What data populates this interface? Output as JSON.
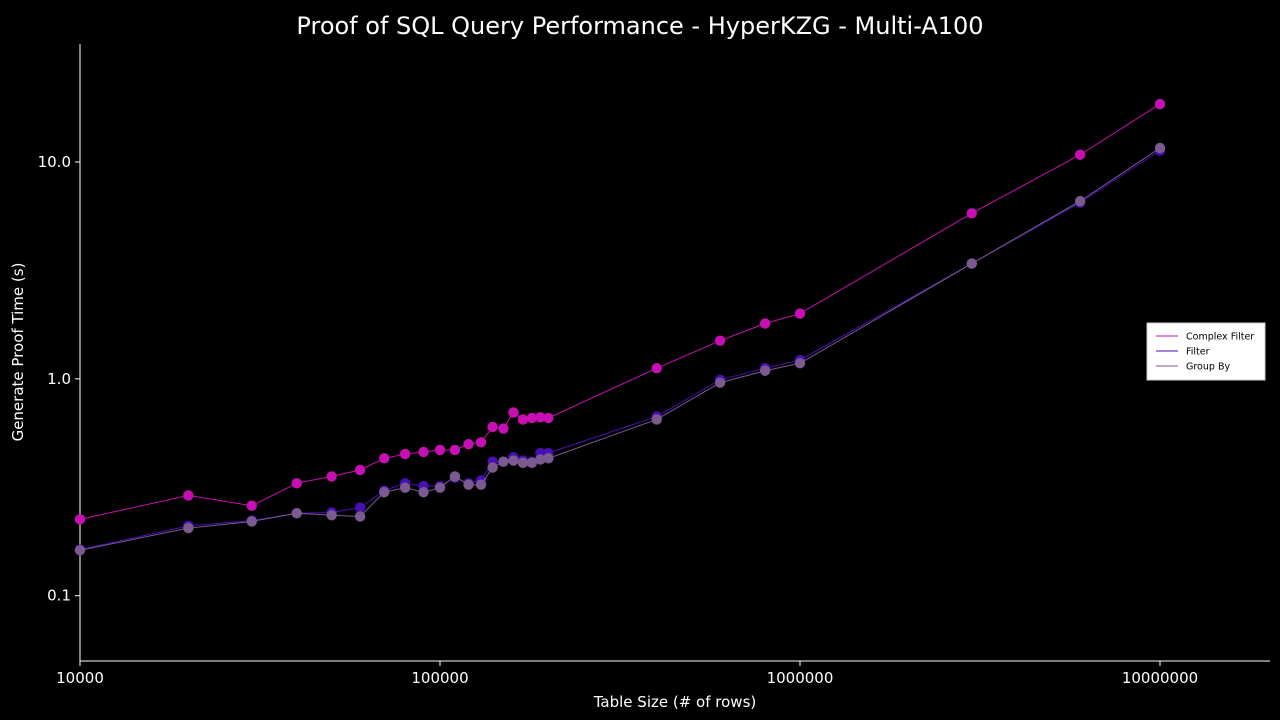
{
  "chart_data": {
    "type": "line",
    "title": "Proof of SQL Query Performance - HyperKZG - Multi-A100",
    "xlabel": "Table Size (# of rows)",
    "ylabel": "Generate Proof Time (s)",
    "xscale": "log",
    "yscale": "log",
    "xlim": [
      10000,
      20000000
    ],
    "ylim": [
      0.05,
      35
    ],
    "xticks": [
      10000,
      100000,
      1000000,
      10000000
    ],
    "xtick_labels": [
      "10000",
      "100000",
      "1000000",
      "10000000"
    ],
    "yticks": [
      0.1,
      1.0,
      10.0
    ],
    "ytick_labels": [
      "0.1",
      "1.0",
      "10.0"
    ],
    "grid": false,
    "legend_position": "right",
    "series": [
      {
        "name": "Complex Filter",
        "color": "#c80fb4",
        "x": [
          10000,
          20000,
          30000,
          40000,
          50000,
          60000,
          70000,
          80000,
          90000,
          100000,
          110000,
          120000,
          130000,
          140000,
          150000,
          160000,
          170000,
          180000,
          190000,
          200000,
          400000,
          600000,
          800000,
          1000000,
          3000000,
          6000000,
          10000000
        ],
        "y": [
          0.225,
          0.29,
          0.26,
          0.33,
          0.355,
          0.38,
          0.43,
          0.45,
          0.46,
          0.47,
          0.47,
          0.5,
          0.51,
          0.6,
          0.59,
          0.7,
          0.65,
          0.66,
          0.665,
          0.66,
          1.12,
          1.5,
          1.8,
          2.0,
          5.8,
          10.8,
          18.5
        ]
      },
      {
        "name": "Filter",
        "color": "#4a0fb4",
        "x": [
          10000,
          20000,
          30000,
          40000,
          50000,
          60000,
          70000,
          80000,
          90000,
          100000,
          110000,
          120000,
          130000,
          140000,
          150000,
          160000,
          170000,
          180000,
          190000,
          200000,
          400000,
          600000,
          800000,
          1000000,
          3000000,
          6000000,
          10000000
        ],
        "y": [
          0.163,
          0.21,
          0.222,
          0.24,
          0.242,
          0.255,
          0.305,
          0.33,
          0.32,
          0.32,
          0.35,
          0.33,
          0.34,
          0.415,
          0.415,
          0.435,
          0.42,
          0.415,
          0.455,
          0.455,
          0.67,
          0.99,
          1.12,
          1.22,
          3.4,
          6.5,
          11.3
        ]
      },
      {
        "name": "Group By",
        "color": "#7b5a8f",
        "x": [
          10000,
          20000,
          30000,
          40000,
          50000,
          60000,
          70000,
          80000,
          90000,
          100000,
          110000,
          120000,
          130000,
          140000,
          150000,
          160000,
          170000,
          180000,
          190000,
          200000,
          400000,
          600000,
          800000,
          1000000,
          3000000,
          6000000,
          10000000
        ],
        "y": [
          0.162,
          0.205,
          0.22,
          0.24,
          0.235,
          0.232,
          0.3,
          0.315,
          0.3,
          0.315,
          0.355,
          0.325,
          0.325,
          0.39,
          0.415,
          0.42,
          0.41,
          0.41,
          0.425,
          0.43,
          0.65,
          0.96,
          1.09,
          1.18,
          3.4,
          6.6,
          11.6
        ]
      }
    ]
  }
}
